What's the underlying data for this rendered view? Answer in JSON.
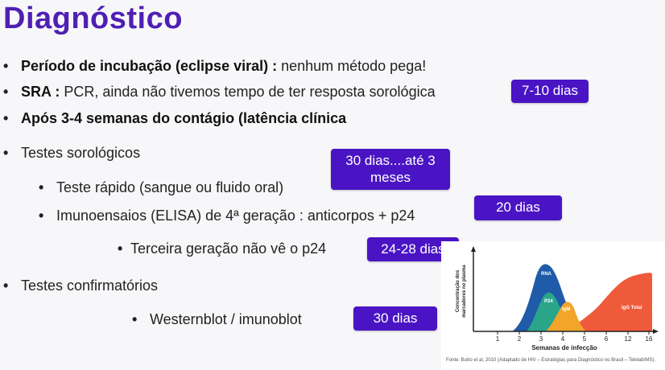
{
  "title": "Diagnóstico",
  "items": {
    "b1_bold": "Período de incubação (eclipse viral) :",
    "b1_rest": " nenhum método pega!",
    "b2_bold": "SRA :",
    "b2_rest": " PCR, ainda não tivemos tempo de ter resposta sorológica",
    "b3_bold": "Após 3-4 semanas do contágio (latência clínica",
    "b4": "Testes sorológicos",
    "b4a": "Teste rápido (sangue ou fluido oral)",
    "b4b": "Imunoensaios (ELISA) de 4ª geração : anticorpos + p24",
    "b4c": "Terceira geração não vê o p24",
    "b5": "Testes confirmatórios",
    "b5a": "Westernblot / imunoblot"
  },
  "bullet_symbol": "•",
  "badges": {
    "b1": "7-10 dias",
    "b2a": "30 dias....até 3",
    "b2b": "meses",
    "b3": "20 dias",
    "b4": "24-28 dias",
    "b5": "30 dias"
  },
  "colors": {
    "title": "#4f1fb3",
    "badge": "#4a14c4",
    "rna": "#1f5ba8",
    "p24": "#2aa58a",
    "igm": "#f2a52a",
    "iggtotal": "#ef5a3a"
  },
  "chart_data": {
    "type": "area",
    "xlabel": "Semanas de infecção",
    "ylabel_line1": "Concentração dos",
    "ylabel_line2": "marcadores no plasma",
    "x_ticks": [
      "1",
      "2",
      "3",
      "4",
      "5",
      "6",
      "12",
      "16"
    ],
    "series": [
      {
        "name": "RNA"
      },
      {
        "name": "P24"
      },
      {
        "name": "IgM"
      },
      {
        "name": "IgG Total"
      }
    ],
    "caption": "Fonte: Butto et al, 2010 (Adaptado de HIV – Estratégias para Diagnóstico no Brasil – Telelab/MS)."
  }
}
